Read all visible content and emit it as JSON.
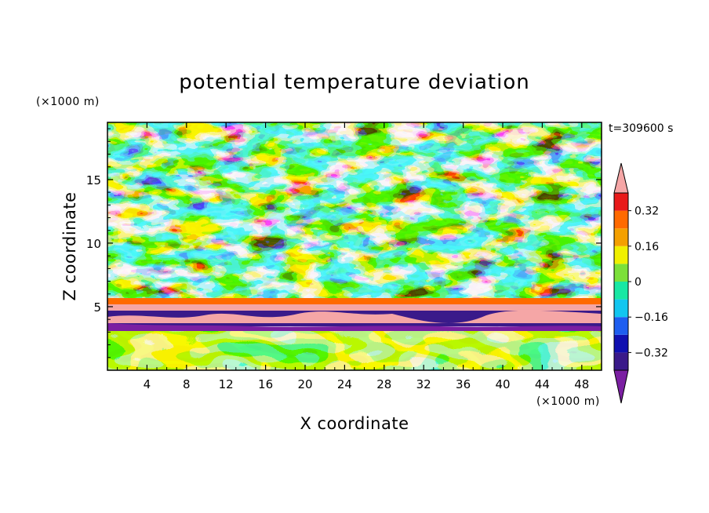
{
  "chart_data": {
    "type": "heatmap",
    "title": "potential temperature deviation",
    "xlabel": "X coordinate",
    "ylabel": "Z coordinate",
    "x_unit": "(×1000 m)",
    "y_unit": "(×1000 m)",
    "time_label": "t=309600 s",
    "xlim": [
      0,
      50
    ],
    "ylim": [
      0,
      19.5
    ],
    "x_ticks": [
      4,
      8,
      12,
      16,
      20,
      24,
      28,
      32,
      36,
      40,
      44,
      48
    ],
    "y_ticks": [
      5,
      10,
      15
    ],
    "colorbar": {
      "levels": [
        -0.4,
        -0.32,
        -0.24,
        -0.16,
        -0.08,
        0,
        0.08,
        0.16,
        0.24,
        0.32,
        0.4
      ],
      "tick_labels": [
        "0.32",
        "0.16",
        "0",
        "−0.16",
        "−0.32"
      ],
      "tick_values": [
        0.32,
        0.16,
        0,
        -0.16,
        -0.32
      ],
      "colors": [
        "#7b1fa2",
        "#3a1a8a",
        "#1010b0",
        "#1e5ef0",
        "#12c6f0",
        "#18e8a4",
        "#7ce03a",
        "#f0f000",
        "#f4a000",
        "#ff6a00",
        "#e81a1a",
        "#f5a6a6"
      ],
      "extend": "both"
    }
  }
}
